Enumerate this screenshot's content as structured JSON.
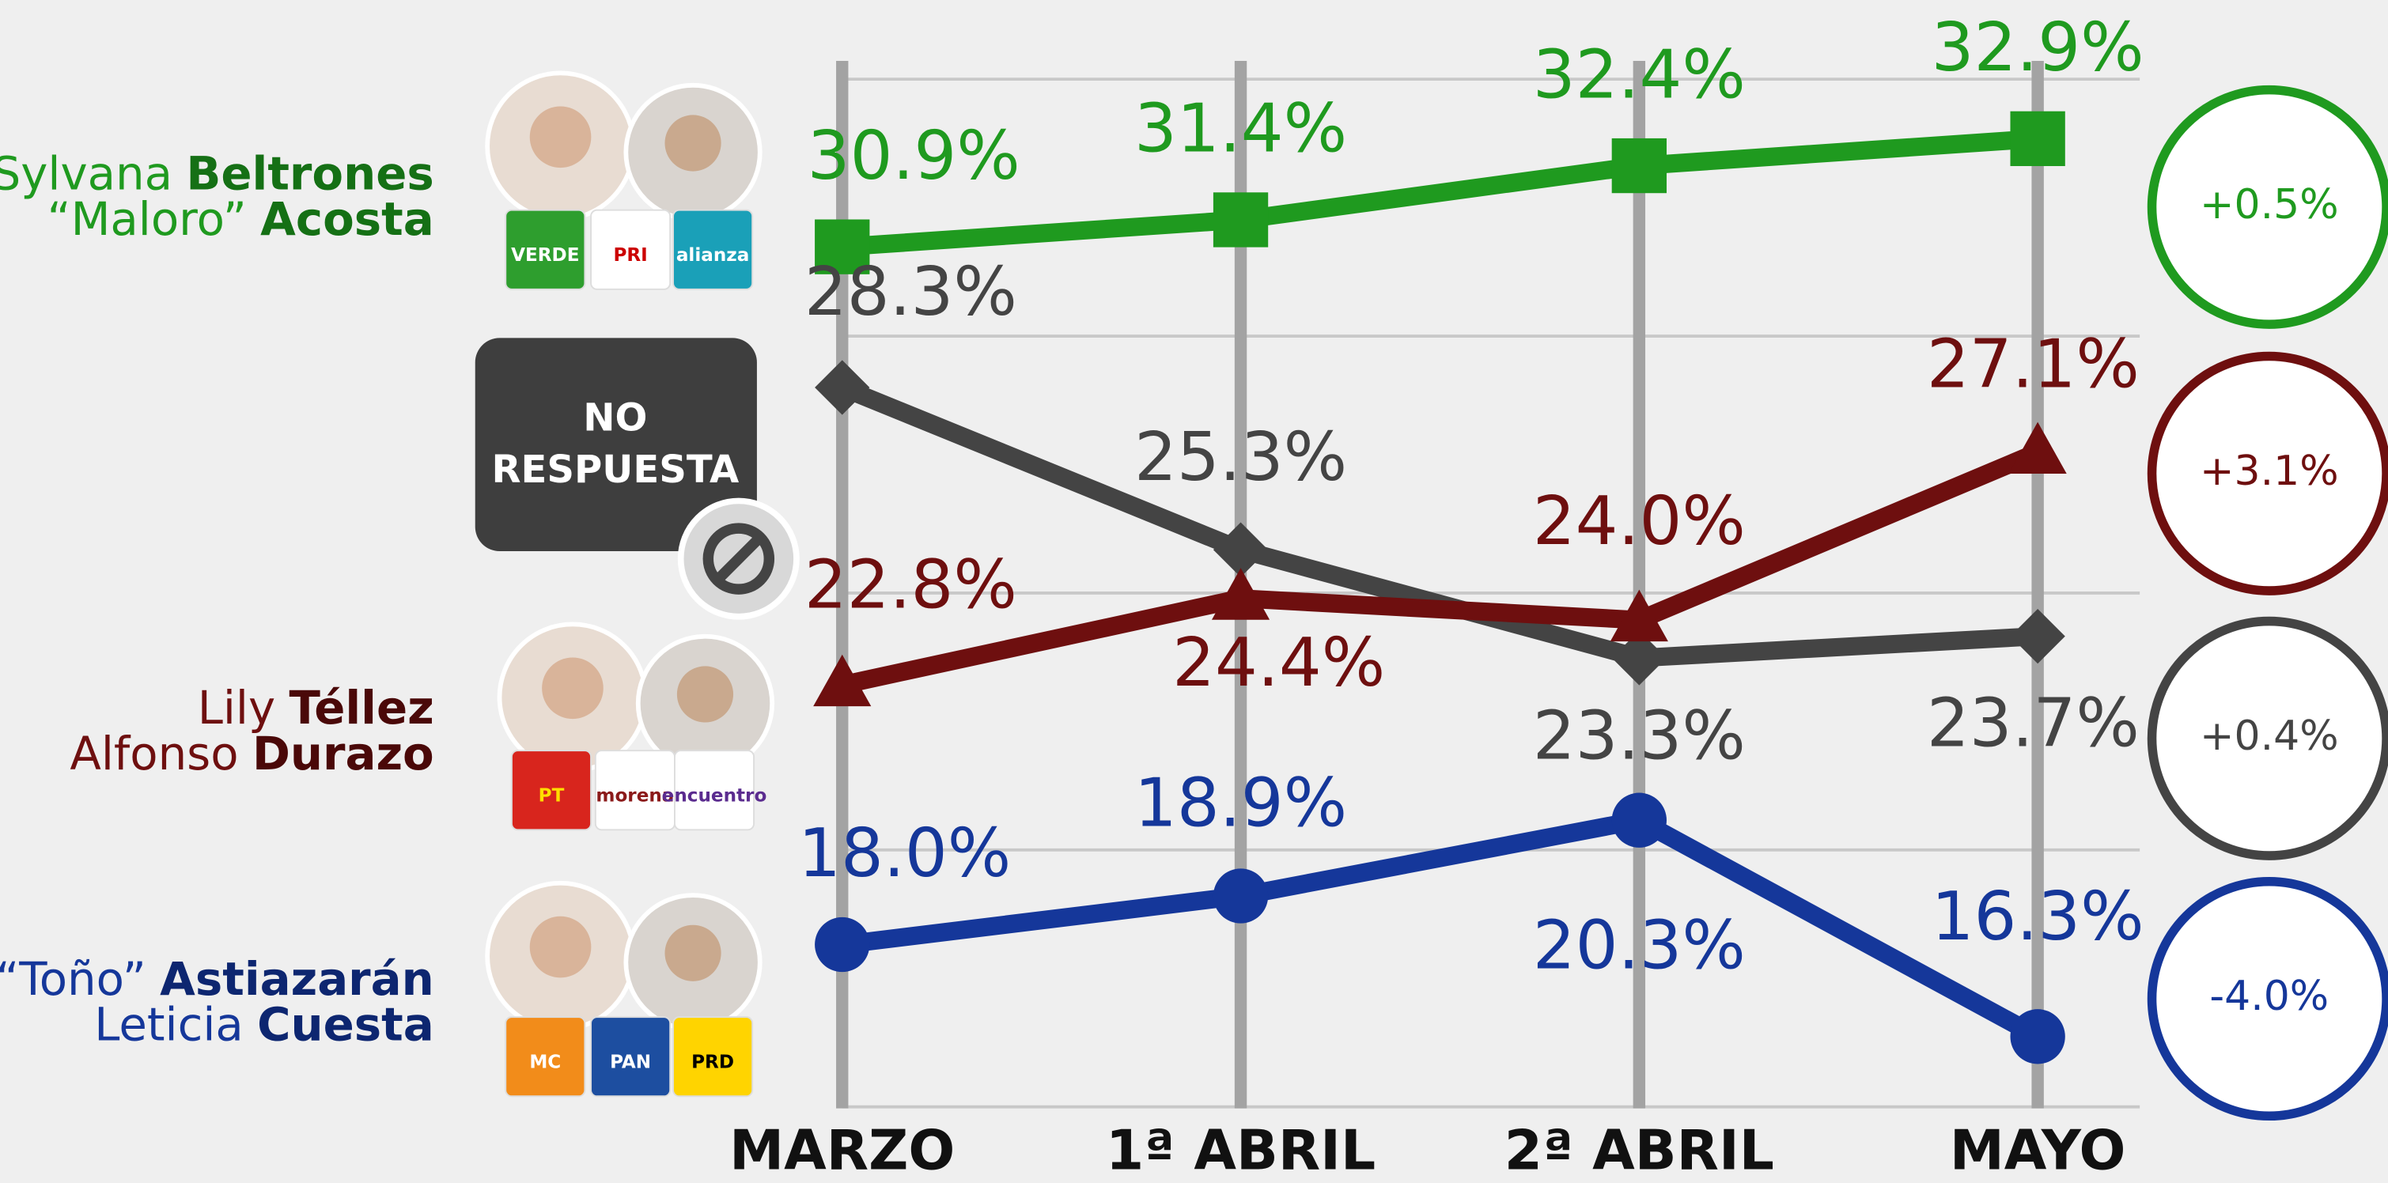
{
  "chart_data": {
    "type": "line",
    "categories": [
      "MARZO",
      "1ª ABRIL",
      "2ª ABRIL",
      "MAYO"
    ],
    "ylim": [
      15,
      34
    ],
    "yticks": [
      15,
      19.75,
      24.5,
      29.25,
      34
    ],
    "grid": true,
    "ytick_labels": false,
    "series": [
      {
        "name_lines": [
          [
            "Sylvana",
            "Beltrones"
          ],
          [
            "“Maloro”",
            "Acosta"
          ]
        ],
        "color": "#1f9a1f",
        "marker": "square",
        "values": [
          30.9,
          31.4,
          32.4,
          32.9
        ],
        "value_labels": [
          "30.9%",
          "31.4%",
          "32.4%",
          "32.9%"
        ],
        "change": "+0.5%",
        "logos": [
          "VERDE",
          "PRI",
          "alianza"
        ]
      },
      {
        "box_lines": [
          "NO",
          "RESPUESTA"
        ],
        "color": "#444444",
        "marker": "diamond",
        "values": [
          28.3,
          25.3,
          23.3,
          23.7
        ],
        "value_labels": [
          "28.3%",
          "25.3%",
          "23.3%",
          "23.7%"
        ],
        "change": "+0.4%"
      },
      {
        "name_lines": [
          [
            "Lily",
            "Téllez"
          ],
          [
            "Alfonso",
            "Durazo"
          ]
        ],
        "color": "#6e0f0f",
        "marker": "triangle",
        "values": [
          22.8,
          24.4,
          24.0,
          27.1
        ],
        "value_labels": [
          "22.8%",
          "24.4%",
          "24.0%",
          "27.1%"
        ],
        "change": "+3.1%",
        "logos": [
          "PT",
          "morena",
          "encuentro"
        ]
      },
      {
        "name_lines": [
          [
            "“Toño”",
            "Astiazarán"
          ],
          [
            "Leticia",
            "Cuesta"
          ]
        ],
        "color": "#15379a",
        "marker": "circle",
        "values": [
          18.0,
          18.9,
          20.3,
          16.3
        ],
        "value_labels": [
          "18.0%",
          "18.9%",
          "20.3%",
          "16.3%"
        ],
        "change": "-4.0%",
        "logos": [
          "MC",
          "PAN",
          "PRD"
        ]
      }
    ]
  }
}
